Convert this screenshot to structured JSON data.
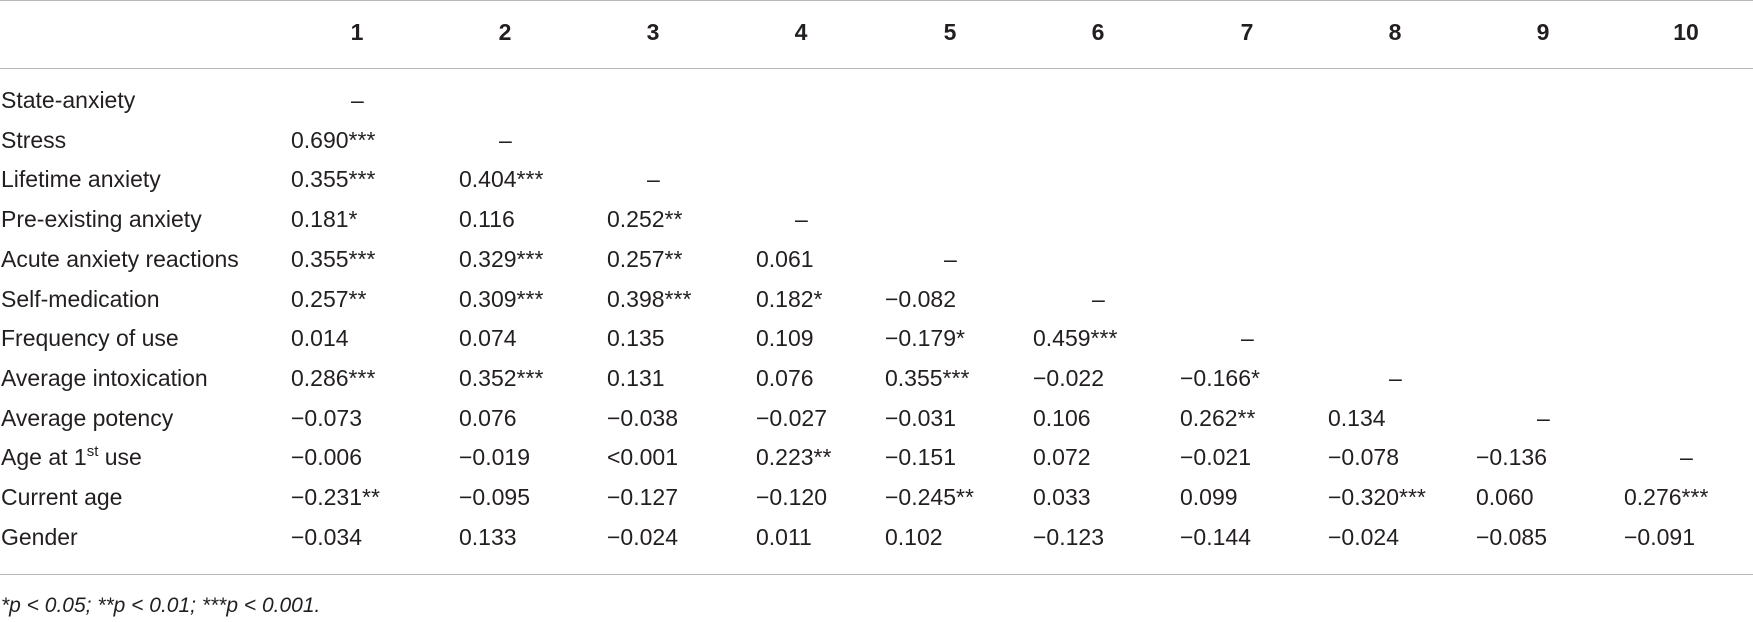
{
  "table": {
    "columns": [
      "1",
      "2",
      "3",
      "4",
      "5",
      "6",
      "7",
      "8",
      "9",
      "10"
    ],
    "rows": [
      {
        "label": "State-anxiety",
        "sup": "",
        "label_suffix": "",
        "cells": [
          "–",
          "",
          "",
          "",
          "",
          "",
          "",
          "",
          "",
          ""
        ]
      },
      {
        "label": "Stress",
        "sup": "",
        "label_suffix": "",
        "cells": [
          "0.690***",
          "–",
          "",
          "",
          "",
          "",
          "",
          "",
          "",
          ""
        ]
      },
      {
        "label": "Lifetime anxiety",
        "sup": "",
        "label_suffix": "",
        "cells": [
          "0.355***",
          "0.404***",
          "–",
          "",
          "",
          "",
          "",
          "",
          "",
          ""
        ]
      },
      {
        "label": "Pre-existing anxiety",
        "sup": "",
        "label_suffix": "",
        "cells": [
          "0.181*",
          "0.116",
          "0.252**",
          "–",
          "",
          "",
          "",
          "",
          "",
          ""
        ]
      },
      {
        "label": "Acute anxiety reactions",
        "sup": "",
        "label_suffix": "",
        "cells": [
          "0.355***",
          "0.329***",
          "0.257**",
          "0.061",
          "–",
          "",
          "",
          "",
          "",
          ""
        ]
      },
      {
        "label": "Self-medication",
        "sup": "",
        "label_suffix": "",
        "cells": [
          "0.257**",
          "0.309***",
          "0.398***",
          "0.182*",
          "−0.082",
          "–",
          "",
          "",
          "",
          ""
        ]
      },
      {
        "label": "Frequency of use",
        "sup": "",
        "label_suffix": "",
        "cells": [
          "0.014",
          "0.074",
          "0.135",
          "0.109",
          "−0.179*",
          "0.459***",
          "–",
          "",
          "",
          ""
        ]
      },
      {
        "label": "Average intoxication",
        "sup": "",
        "label_suffix": "",
        "cells": [
          "0.286***",
          "0.352***",
          "0.131",
          "0.076",
          "0.355***",
          "−0.022",
          "−0.166*",
          "–",
          "",
          ""
        ]
      },
      {
        "label": "Average potency",
        "sup": "",
        "label_suffix": "",
        "cells": [
          "−0.073",
          "0.076",
          "−0.038",
          "−0.027",
          "−0.031",
          "0.106",
          "0.262**",
          "0.134",
          "–",
          ""
        ]
      },
      {
        "label": "Age at 1",
        "sup": "st",
        "label_suffix": " use",
        "cells": [
          "−0.006",
          "−0.019",
          "<0.001",
          "0.223**",
          "−0.151",
          "0.072",
          "−0.021",
          "−0.078",
          "−0.136",
          "–"
        ]
      },
      {
        "label": "Current age",
        "sup": "",
        "label_suffix": "",
        "cells": [
          "−0.231**",
          "−0.095",
          "−0.127",
          "−0.120",
          "−0.245**",
          "0.033",
          "0.099",
          "−0.320***",
          "0.060",
          "0.276***"
        ]
      },
      {
        "label": "Gender",
        "sup": "",
        "label_suffix": "",
        "cells": [
          "−0.034",
          "0.133",
          "−0.024",
          "0.011",
          "0.102",
          "−0.123",
          "−0.144",
          "−0.024",
          "−0.085",
          "−0.091"
        ]
      }
    ]
  },
  "footnote": "*p < 0.05; **p < 0.01; ***p < 0.001."
}
